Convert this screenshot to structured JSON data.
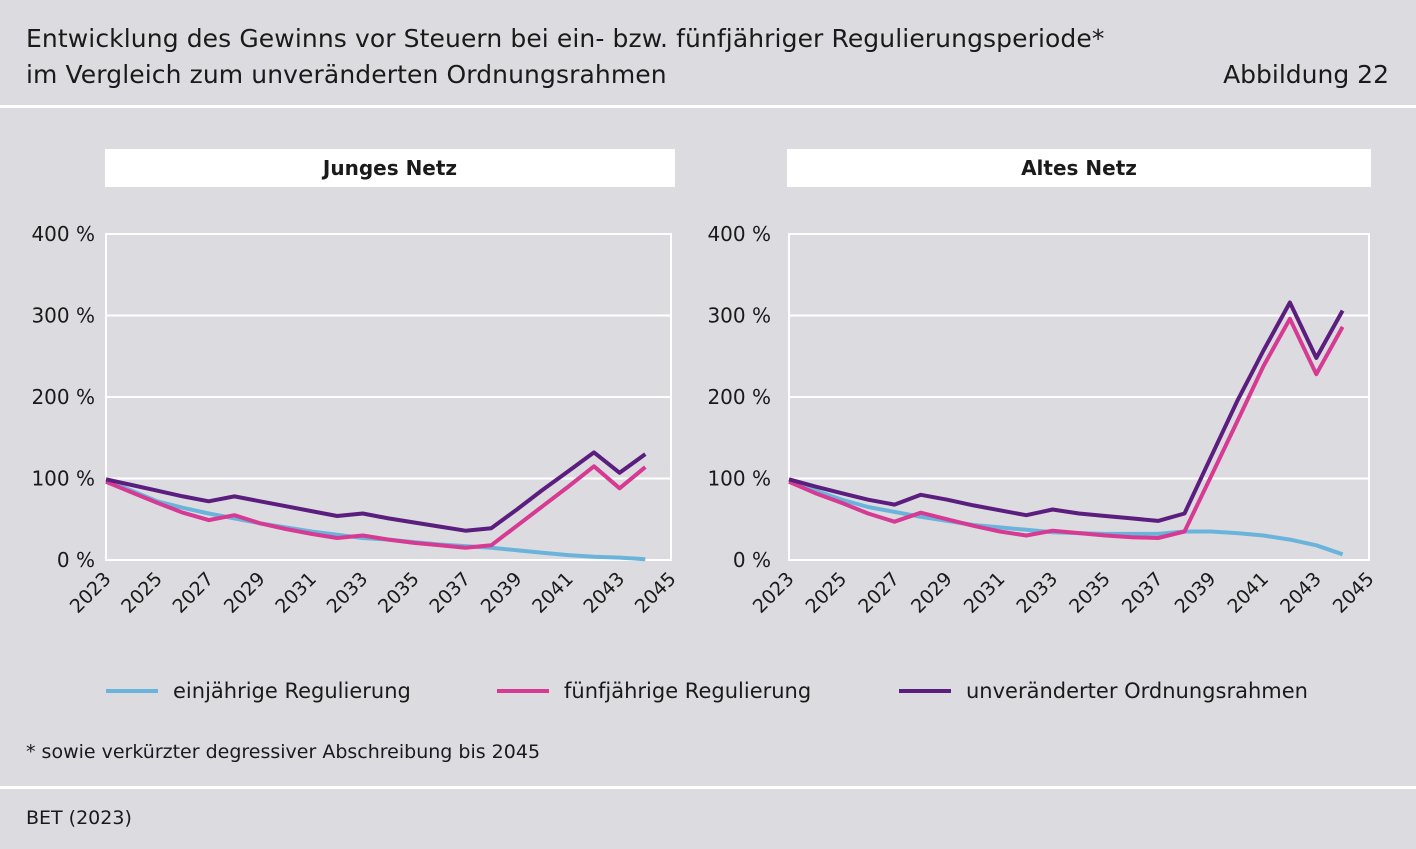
{
  "header": {
    "title_line1": "Entwicklung des Gewinns vor Steuern bei ein- bzw. fünfjähriger Regulierungsperiode*",
    "title_line2": "im Vergleich zum unveränderten Ordnungsrahmen",
    "figure_label": "Abbildung 22"
  },
  "colors": {
    "einjaehrig": "#6ab4dc",
    "fuenfjaehrig": "#d63a93",
    "unveraendert": "#5b1e7e",
    "gridline": "#ffffff",
    "text": "#1a1a1a"
  },
  "legend": [
    {
      "label": "einjährige Regulierung",
      "color_key": "einjaehrig"
    },
    {
      "label": "fünfjährige Regulierung",
      "color_key": "fuenfjaehrig"
    },
    {
      "label": "unveränderter Ordnungsrahmen",
      "color_key": "unveraendert"
    }
  ],
  "chart_data": [
    {
      "type": "line",
      "title": "Junges Netz",
      "x": [
        2023,
        2024,
        2025,
        2026,
        2027,
        2028,
        2029,
        2030,
        2031,
        2032,
        2033,
        2034,
        2035,
        2036,
        2037,
        2038,
        2039,
        2040,
        2041,
        2042,
        2043,
        2044
      ],
      "x_tick_labels": [
        "2023",
        "2025",
        "2027",
        "2029",
        "2031",
        "2033",
        "2035",
        "2037",
        "2039",
        "2041",
        "2043",
        "2045"
      ],
      "y_tick_labels": [
        "0 %",
        "100 %",
        "200 %",
        "300 %",
        "400 %"
      ],
      "ylim": [
        0,
        400
      ],
      "xlim": [
        2023,
        2045
      ],
      "series": [
        {
          "name": "einjährige Regulierung",
          "color_key": "einjaehrig",
          "values": [
            98,
            85,
            72,
            64,
            57,
            51,
            45,
            40,
            35,
            31,
            27,
            25,
            22,
            19,
            17,
            15,
            12,
            9,
            6,
            4,
            3,
            1
          ]
        },
        {
          "name": "fünfjährige Regulierung",
          "color_key": "fuenfjaehrig",
          "values": [
            96,
            83,
            70,
            58,
            49,
            55,
            45,
            38,
            32,
            27,
            30,
            25,
            21,
            18,
            15,
            18,
            42,
            66,
            90,
            115,
            88,
            114
          ]
        },
        {
          "name": "unveränderter Ordnungsrahmen",
          "color_key": "unveraendert",
          "values": [
            99,
            92,
            85,
            78,
            72,
            78,
            72,
            66,
            60,
            54,
            57,
            51,
            46,
            41,
            36,
            39,
            62,
            86,
            109,
            132,
            107,
            130
          ]
        }
      ]
    },
    {
      "type": "line",
      "title": "Altes Netz",
      "x": [
        2023,
        2024,
        2025,
        2026,
        2027,
        2028,
        2029,
        2030,
        2031,
        2032,
        2033,
        2034,
        2035,
        2036,
        2037,
        2038,
        2039,
        2040,
        2041,
        2042,
        2043,
        2044
      ],
      "x_tick_labels": [
        "2023",
        "2025",
        "2027",
        "2029",
        "2031",
        "2033",
        "2035",
        "2037",
        "2039",
        "2041",
        "2043",
        "2045"
      ],
      "y_tick_labels": [
        "0 %",
        "100 %",
        "200 %",
        "300 %",
        "400 %"
      ],
      "ylim": [
        0,
        400
      ],
      "xlim": [
        2023,
        2045
      ],
      "series": [
        {
          "name": "einjährige Regulierung",
          "color_key": "einjaehrig",
          "values": [
            98,
            85,
            74,
            65,
            59,
            53,
            48,
            43,
            40,
            37,
            34,
            33,
            32,
            32,
            32,
            35,
            35,
            33,
            30,
            25,
            18,
            7
          ]
        },
        {
          "name": "fünfjährige Regulierung",
          "color_key": "fuenfjaehrig",
          "values": [
            96,
            82,
            70,
            57,
            47,
            58,
            50,
            42,
            35,
            30,
            36,
            33,
            30,
            28,
            27,
            35,
            102,
            170,
            238,
            296,
            228,
            286
          ]
        },
        {
          "name": "unveränderter Ordnungsrahmen",
          "color_key": "unveraendert",
          "values": [
            99,
            90,
            82,
            74,
            68,
            80,
            74,
            67,
            61,
            55,
            62,
            57,
            54,
            51,
            48,
            57,
            126,
            195,
            257,
            316,
            248,
            306
          ]
        }
      ]
    }
  ],
  "footnote": "* sowie verkürzter degressiver Abschreibung bis 2045",
  "source": "BET (2023)"
}
